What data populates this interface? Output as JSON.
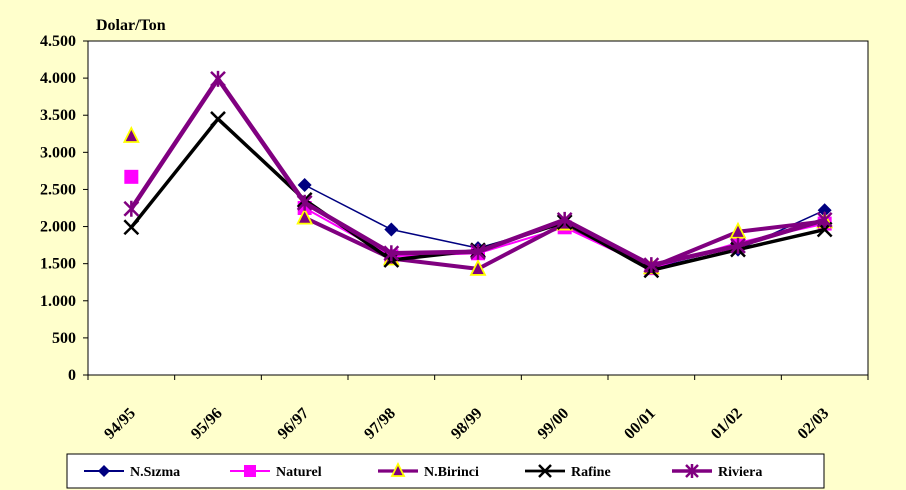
{
  "chart_data": {
    "type": "line",
    "ylabel": "Dolar/Ton",
    "ylim": [
      0,
      4500
    ],
    "yticks": [
      0,
      500,
      1000,
      1500,
      2000,
      2500,
      3000,
      3500,
      4000,
      4500
    ],
    "ytick_labels": [
      "0",
      "500",
      "1.000",
      "1.500",
      "2.000",
      "2.500",
      "3.000",
      "3.500",
      "4.000",
      "4.500"
    ],
    "categories": [
      "94/95",
      "95/96",
      "96/97",
      "97/98",
      "98/99",
      "99/00",
      "00/01",
      "01/02",
      "02/03"
    ],
    "grid": false,
    "legend_position": "bottom",
    "series": [
      {
        "name": "N.Sızma",
        "color": "#000080",
        "marker": "diamond",
        "values": [
          null,
          null,
          2560,
          1960,
          1710,
          2040,
          1440,
          1690,
          2220
        ]
      },
      {
        "name": "Naturel",
        "color": "#FF00FF",
        "marker": "square",
        "values": [
          2670,
          null,
          2250,
          1600,
          1640,
          1990,
          1440,
          1780,
          2040
        ]
      },
      {
        "name": "N.Birinci",
        "color": "#800080",
        "marker": "triangle",
        "values": [
          3220,
          null,
          2120,
          1570,
          1430,
          2040,
          1450,
          1930,
          2070
        ]
      },
      {
        "name": "Rafine",
        "color": "#000000",
        "marker": "x",
        "values": [
          1990,
          3450,
          2360,
          1550,
          1680,
          2060,
          1410,
          1690,
          1960
        ]
      },
      {
        "name": "Riviera",
        "color": "#800080",
        "marker": "star",
        "values": [
          2240,
          3990,
          2320,
          1640,
          1660,
          2090,
          1480,
          1740,
          2090
        ]
      }
    ]
  }
}
